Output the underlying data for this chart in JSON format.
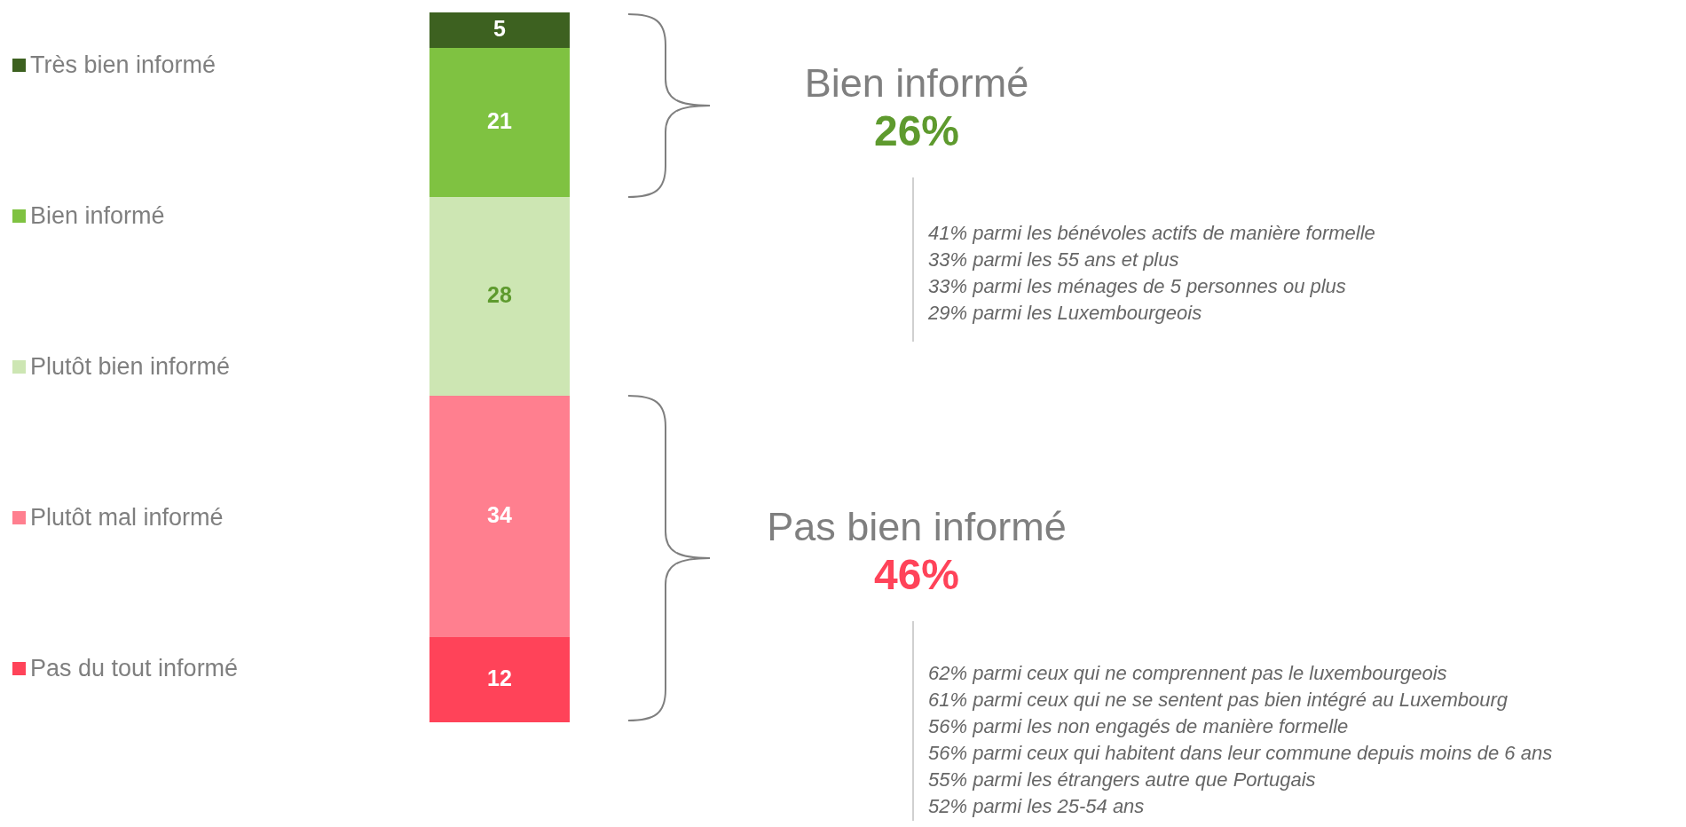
{
  "chart_data": {
    "type": "bar",
    "stacked": true,
    "categories": [
      null
    ],
    "data_labels": true,
    "legend": "left",
    "series": [
      {
        "name": "Pas du tout informé",
        "color": "#ff4359",
        "values": [
          12
        ]
      },
      {
        "name": "Plutôt mal informé",
        "color": "#ff7f8f",
        "values": [
          34
        ]
      },
      {
        "name": "Plutôt bien informé",
        "color": "#cde6b3",
        "values": [
          28
        ]
      },
      {
        "name": "Bien informé",
        "color": "#7fc241",
        "values": [
          21
        ]
      },
      {
        "name": "Très bien informé",
        "color": "#3d6120",
        "values": [
          5
        ]
      }
    ],
    "annotations": [
      "Bien informé",
      "26%",
      "41% parmi les bénévoles actifs de manière formelle\n33% parmi les 55 ans et plus\n33% parmi les ménages de 5 personnes ou plus\n29% parmi les Luxembourgeois",
      "Pas bien informé",
      "46%",
      "62% parmi ceux qui ne comprennent pas le luxembourgeois\n61% parmi ceux qui ne se sentent pas bien intégré au Luxembourg\n56% parmi les non engagés de manière formelle\n56% parmi ceux qui habitent dans leur commune depuis moins de 6 ans\n55% parmi les étrangers autre que Portugais\n52% parmi les 25-54 ans"
    ]
  }
}
